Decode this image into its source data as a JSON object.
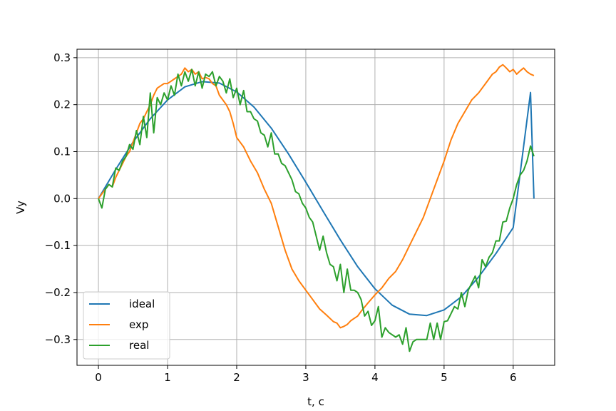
{
  "chart_data": {
    "type": "line",
    "title": "",
    "xlabel": "t, c",
    "ylabel": "Vy",
    "xlim": [
      -0.31,
      6.6
    ],
    "ylim": [
      -0.355,
      0.318
    ],
    "xticks": [
      0,
      1,
      2,
      3,
      4,
      5,
      6
    ],
    "xtick_labels": [
      "0",
      "1",
      "2",
      "3",
      "4",
      "5",
      "6"
    ],
    "yticks": [
      -0.3,
      -0.2,
      -0.1,
      0.0,
      0.1,
      0.2,
      0.3
    ],
    "ytick_labels": [
      "−0.3",
      "−0.2",
      "−0.1",
      "0.0",
      "0.1",
      "0.2",
      "0.3"
    ],
    "grid": true,
    "legend_position": "lower-left",
    "series": [
      {
        "name": "ideal",
        "color": "#1f77b4",
        "x": [
          0.0,
          0.25,
          0.5,
          0.75,
          1.0,
          1.25,
          1.5,
          1.75,
          2.0,
          2.25,
          2.5,
          2.75,
          3.0,
          3.25,
          3.5,
          3.75,
          4.0,
          4.25,
          4.5,
          4.75,
          5.0,
          5.25,
          5.5,
          5.75,
          6.0,
          6.25,
          6.3
        ],
        "y": [
          0.0,
          0.062,
          0.12,
          0.17,
          0.21,
          0.238,
          0.249,
          0.246,
          0.227,
          0.195,
          0.15,
          0.095,
          0.035,
          -0.027,
          -0.088,
          -0.145,
          -0.192,
          -0.227,
          -0.246,
          -0.249,
          -0.237,
          -0.209,
          -0.167,
          -0.117,
          -0.062,
          0.226,
          0.0
        ]
      },
      {
        "name": "exp",
        "color": "#ff7f0e",
        "x": [
          0.0,
          0.05,
          0.1,
          0.15,
          0.2,
          0.25,
          0.3,
          0.35,
          0.4,
          0.45,
          0.5,
          0.55,
          0.6,
          0.65,
          0.7,
          0.75,
          0.8,
          0.85,
          0.9,
          0.95,
          1.0,
          1.05,
          1.1,
          1.15,
          1.2,
          1.25,
          1.3,
          1.35,
          1.4,
          1.45,
          1.5,
          1.55,
          1.6,
          1.65,
          1.7,
          1.75,
          1.8,
          1.85,
          1.9,
          1.95,
          2.0,
          2.1,
          2.2,
          2.3,
          2.4,
          2.5,
          2.6,
          2.7,
          2.8,
          2.9,
          3.0,
          3.1,
          3.2,
          3.3,
          3.4,
          3.45,
          3.5,
          3.55,
          3.6,
          3.65,
          3.7,
          3.75,
          3.8,
          3.9,
          4.0,
          4.1,
          4.2,
          4.3,
          4.4,
          4.5,
          4.6,
          4.7,
          4.8,
          4.9,
          5.0,
          5.1,
          5.2,
          5.3,
          5.4,
          5.5,
          5.6,
          5.7,
          5.75,
          5.8,
          5.85,
          5.9,
          5.95,
          6.0,
          6.05,
          6.1,
          6.15,
          6.2,
          6.25,
          6.3
        ],
        "y": [
          0.0,
          0.01,
          0.02,
          0.03,
          0.025,
          0.045,
          0.06,
          0.075,
          0.09,
          0.1,
          0.12,
          0.14,
          0.16,
          0.17,
          0.185,
          0.2,
          0.22,
          0.235,
          0.24,
          0.245,
          0.245,
          0.25,
          0.255,
          0.26,
          0.265,
          0.278,
          0.27,
          0.275,
          0.265,
          0.27,
          0.255,
          0.258,
          0.255,
          0.245,
          0.24,
          0.22,
          0.21,
          0.2,
          0.185,
          0.16,
          0.13,
          0.11,
          0.08,
          0.055,
          0.02,
          -0.01,
          -0.06,
          -0.11,
          -0.15,
          -0.175,
          -0.195,
          -0.215,
          -0.235,
          -0.248,
          -0.262,
          -0.265,
          -0.275,
          -0.272,
          -0.268,
          -0.26,
          -0.255,
          -0.25,
          -0.24,
          -0.222,
          -0.205,
          -0.19,
          -0.17,
          -0.155,
          -0.13,
          -0.1,
          -0.07,
          -0.04,
          0.0,
          0.04,
          0.08,
          0.125,
          0.16,
          0.185,
          0.21,
          0.225,
          0.245,
          0.265,
          0.27,
          0.28,
          0.285,
          0.278,
          0.27,
          0.275,
          0.265,
          0.272,
          0.278,
          0.27,
          0.265,
          0.262
        ]
      },
      {
        "name": "real",
        "color": "#2ca02c",
        "x": [
          0.0,
          0.05,
          0.1,
          0.15,
          0.2,
          0.25,
          0.3,
          0.35,
          0.4,
          0.45,
          0.5,
          0.55,
          0.6,
          0.65,
          0.7,
          0.75,
          0.8,
          0.85,
          0.9,
          0.95,
          1.0,
          1.05,
          1.1,
          1.15,
          1.2,
          1.25,
          1.3,
          1.35,
          1.4,
          1.45,
          1.5,
          1.55,
          1.6,
          1.65,
          1.7,
          1.75,
          1.8,
          1.85,
          1.9,
          1.95,
          2.0,
          2.05,
          2.1,
          2.15,
          2.2,
          2.25,
          2.3,
          2.35,
          2.4,
          2.45,
          2.5,
          2.55,
          2.6,
          2.65,
          2.7,
          2.75,
          2.8,
          2.85,
          2.9,
          2.95,
          3.0,
          3.05,
          3.1,
          3.15,
          3.2,
          3.25,
          3.3,
          3.35,
          3.4,
          3.45,
          3.5,
          3.55,
          3.6,
          3.65,
          3.7,
          3.75,
          3.8,
          3.85,
          3.9,
          3.95,
          4.0,
          4.05,
          4.1,
          4.15,
          4.2,
          4.25,
          4.3,
          4.35,
          4.4,
          4.45,
          4.5,
          4.55,
          4.6,
          4.65,
          4.7,
          4.75,
          4.8,
          4.85,
          4.9,
          4.95,
          5.0,
          5.05,
          5.1,
          5.15,
          5.2,
          5.25,
          5.3,
          5.35,
          5.4,
          5.45,
          5.5,
          5.55,
          5.6,
          5.65,
          5.7,
          5.75,
          5.8,
          5.85,
          5.9,
          5.95,
          6.0,
          6.05,
          6.1,
          6.15,
          6.2,
          6.25,
          6.3
        ],
        "y": [
          0.0,
          -0.02,
          0.02,
          0.03,
          0.025,
          0.065,
          0.06,
          0.08,
          0.09,
          0.115,
          0.105,
          0.145,
          0.115,
          0.175,
          0.13,
          0.225,
          0.14,
          0.215,
          0.2,
          0.225,
          0.21,
          0.24,
          0.22,
          0.265,
          0.24,
          0.27,
          0.25,
          0.275,
          0.24,
          0.27,
          0.235,
          0.265,
          0.26,
          0.27,
          0.24,
          0.26,
          0.25,
          0.225,
          0.255,
          0.215,
          0.235,
          0.2,
          0.23,
          0.185,
          0.185,
          0.17,
          0.165,
          0.14,
          0.135,
          0.11,
          0.14,
          0.095,
          0.095,
          0.075,
          0.07,
          0.055,
          0.04,
          0.015,
          0.01,
          -0.01,
          -0.02,
          -0.04,
          -0.05,
          -0.08,
          -0.11,
          -0.08,
          -0.115,
          -0.14,
          -0.145,
          -0.175,
          -0.14,
          -0.2,
          -0.15,
          -0.195,
          -0.195,
          -0.2,
          -0.215,
          -0.25,
          -0.24,
          -0.27,
          -0.26,
          -0.23,
          -0.295,
          -0.275,
          -0.285,
          -0.29,
          -0.295,
          -0.29,
          -0.31,
          -0.275,
          -0.325,
          -0.305,
          -0.3,
          -0.3,
          -0.3,
          -0.3,
          -0.265,
          -0.3,
          -0.265,
          -0.3,
          -0.262,
          -0.26,
          -0.245,
          -0.23,
          -0.235,
          -0.2,
          -0.23,
          -0.195,
          -0.18,
          -0.165,
          -0.19,
          -0.13,
          -0.145,
          -0.125,
          -0.115,
          -0.09,
          -0.09,
          -0.05,
          -0.048,
          -0.02,
          0.0,
          0.03,
          0.05,
          0.06,
          0.08,
          0.112,
          0.09
        ]
      }
    ]
  }
}
